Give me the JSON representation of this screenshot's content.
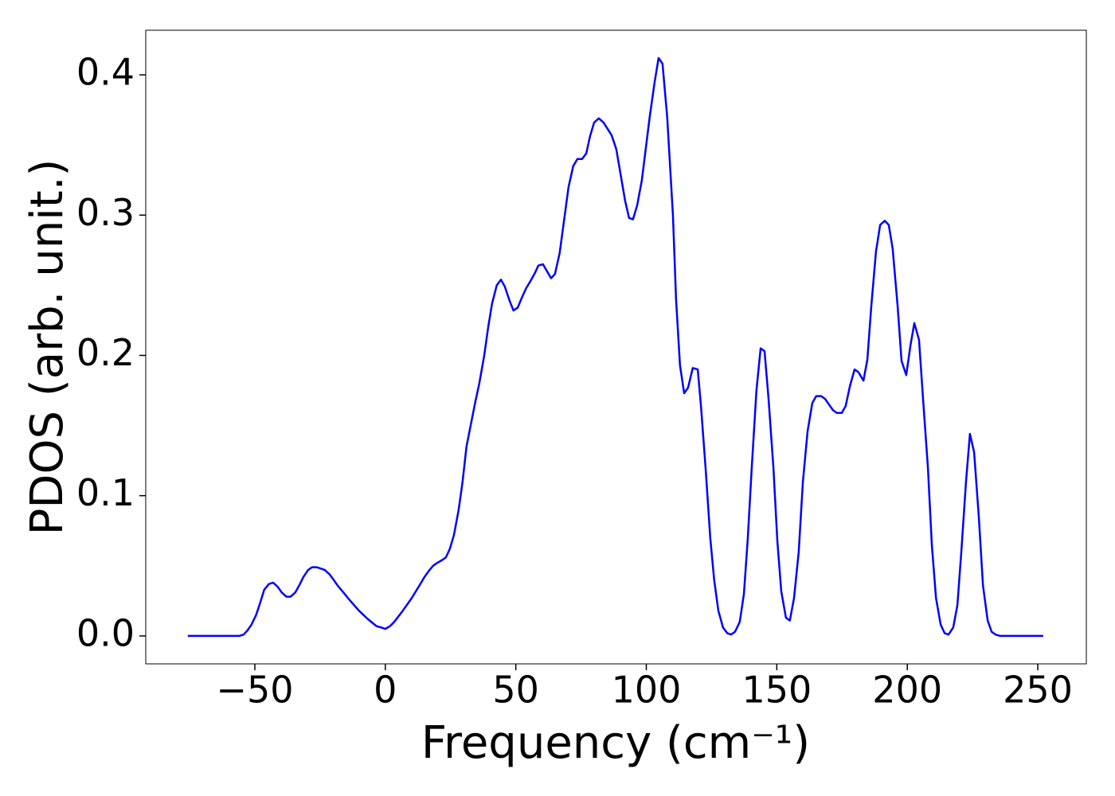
{
  "chart_data": {
    "type": "line",
    "x_label": "Frequency (cm⁻¹)",
    "y_label": "PDOS (arb. unit.)",
    "color": "#0000ff",
    "xlim": [
      -91.8,
      268.6
    ],
    "ylim": [
      -0.0199,
      0.4318
    ],
    "xticks": [
      {
        "value": -50,
        "label": "−50"
      },
      0,
      50,
      100,
      150,
      200,
      250
    ],
    "yticks": [
      {
        "value": 0,
        "label": "0.0"
      },
      0.1,
      0.2,
      0.3,
      0.4
    ],
    "x": [
      -75.7,
      -56,
      -54.3,
      -52.8,
      -51.3,
      -49.5,
      -47.9,
      -46.4,
      -44.6,
      -43,
      -41.2,
      -39.7,
      -37.9,
      -36.3,
      -34.5,
      -33,
      -31.4,
      -29.6,
      -28.1,
      -26.3,
      -24.7,
      -23.2,
      -21.4,
      -19.8,
      -18.3,
      -16.5,
      -13.4,
      -10.1,
      -6.7,
      -3.4,
      -1.5,
      0,
      1.8,
      3.4,
      6.7,
      10.1,
      13.4,
      15,
      16.5,
      18.3,
      19.8,
      21.7,
      23.2,
      24.7,
      26.3,
      28.1,
      29.6,
      31.1,
      33,
      34.5,
      36,
      37.9,
      39.4,
      40.9,
      42.7,
      44.3,
      45.8,
      47.6,
      49.1,
      50.7,
      52.5,
      54,
      55.6,
      57.4,
      58.6,
      60.4,
      63.5,
      65,
      66.8,
      70.2,
      72,
      73.6,
      75.4,
      77,
      78.4,
      80,
      81.8,
      83.6,
      86.7,
      88.5,
      91.9,
      93.4,
      94.9,
      96.5,
      98.3,
      101.3,
      103.2,
      104.7,
      106.2,
      108,
      110.2,
      111.4,
      112.9,
      114.5,
      116,
      117.8,
      119.7,
      120.9,
      122.7,
      124.5,
      126,
      127.6,
      129.4,
      131,
      132.5,
      134,
      135.8,
      137.4,
      138.9,
      140.4,
      142.2,
      143.8,
      145.3,
      146.8,
      148.7,
      150.2,
      151.7,
      153.5,
      155,
      156.6,
      158.4,
      160,
      161.8,
      163.6,
      165.1,
      167,
      168.5,
      170,
      171.5,
      173,
      174.9,
      176.4,
      178,
      179.8,
      181.3,
      183.2,
      184.7,
      186.2,
      188,
      189.6,
      191.4,
      192.9,
      194.4,
      196.3,
      197.8,
      199.6,
      201.2,
      202.7,
      204.5,
      206,
      207.9,
      209.4,
      211,
      212.8,
      214.3,
      215.8,
      217.6,
      219.2,
      220.7,
      222.5,
      224,
      225.6,
      227.4,
      229,
      230.8,
      232.3,
      233.8,
      235.6,
      252.1
    ],
    "values": [
      0,
      0,
      0.001,
      0.004,
      0.008,
      0.015,
      0.024,
      0.033,
      0.037,
      0.038,
      0.035,
      0.031,
      0.028,
      0.028,
      0.031,
      0.036,
      0.042,
      0.047,
      0.049,
      0.049,
      0.048,
      0.047,
      0.044,
      0.04,
      0.036,
      0.032,
      0.025,
      0.018,
      0.012,
      0.007,
      0.006,
      0.005,
      0.007,
      0.01,
      0.018,
      0.027,
      0.037,
      0.042,
      0.046,
      0.05,
      0.052,
      0.054,
      0.056,
      0.062,
      0.072,
      0.09,
      0.11,
      0.135,
      0.153,
      0.167,
      0.18,
      0.2,
      0.22,
      0.237,
      0.25,
      0.254,
      0.249,
      0.239,
      0.232,
      0.234,
      0.242,
      0.248,
      0.253,
      0.259,
      0.264,
      0.265,
      0.255,
      0.258,
      0.273,
      0.32,
      0.335,
      0.34,
      0.34,
      0.344,
      0.356,
      0.366,
      0.369,
      0.366,
      0.357,
      0.347,
      0.31,
      0.298,
      0.297,
      0.307,
      0.325,
      0.37,
      0.395,
      0.412,
      0.408,
      0.37,
      0.3,
      0.24,
      0.193,
      0.173,
      0.177,
      0.191,
      0.19,
      0.165,
      0.12,
      0.07,
      0.04,
      0.018,
      0.006,
      0.002,
      0.001,
      0.003,
      0.01,
      0.03,
      0.07,
      0.12,
      0.175,
      0.205,
      0.203,
      0.17,
      0.12,
      0.068,
      0.032,
      0.013,
      0.011,
      0.027,
      0.06,
      0.11,
      0.146,
      0.166,
      0.171,
      0.171,
      0.169,
      0.165,
      0.161,
      0.159,
      0.159,
      0.164,
      0.178,
      0.19,
      0.188,
      0.182,
      0.197,
      0.235,
      0.274,
      0.293,
      0.296,
      0.293,
      0.276,
      0.235,
      0.196,
      0.186,
      0.207,
      0.223,
      0.211,
      0.17,
      0.12,
      0.065,
      0.027,
      0.008,
      0.002,
      0.001,
      0.006,
      0.022,
      0.06,
      0.11,
      0.144,
      0.131,
      0.085,
      0.036,
      0.011,
      0.003,
      0.001,
      0,
      0
    ]
  }
}
